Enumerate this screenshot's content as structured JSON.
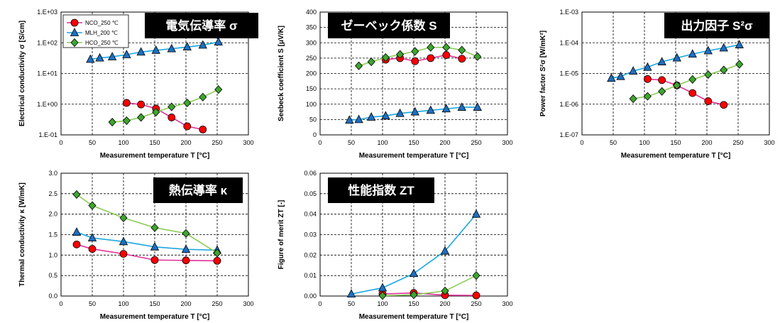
{
  "chart_data": [
    {
      "type": "line",
      "title": "電気伝導率 σ",
      "xlabel": "Measurement temperature T [°C]",
      "ylabel": "Electrical conductivity σ [S/cm]",
      "xlim": [
        0,
        300
      ],
      "xticks": [
        "0",
        "50",
        "100",
        "150",
        "200",
        "250",
        "300"
      ],
      "ylim": [
        0.1,
        1000
      ],
      "yscale": "log",
      "yticks": [
        "1.E-01",
        "1.E+00",
        "1.E+01",
        "1.E+02",
        "1.E+03"
      ],
      "grid": true,
      "legend": "top-left",
      "series": [
        {
          "name": "NCO_250 ℃",
          "x": [
            105,
            128,
            152,
            177,
            202,
            227
          ],
          "y": [
            1.1,
            0.98,
            0.72,
            0.37,
            0.19,
            0.15
          ]
        },
        {
          "name": "MLH_200 ℃",
          "x": [
            47,
            62,
            82,
            105,
            128,
            152,
            177,
            202,
            227,
            252
          ],
          "y": [
            29,
            32,
            35,
            41,
            50,
            57,
            64,
            73,
            84,
            106
          ]
        },
        {
          "name": "HCO_250 ℃",
          "x": [
            82,
            105,
            128,
            152,
            177,
            202,
            227,
            252
          ],
          "y": [
            0.26,
            0.29,
            0.37,
            0.55,
            0.82,
            1.1,
            1.7,
            3.0
          ]
        }
      ]
    },
    {
      "type": "line",
      "title": "ゼーベック係数 S",
      "xlabel": "Measurement temperature T [°C]",
      "ylabel": "Seebeck coefficient S [μV/K]",
      "xlim": [
        0,
        300
      ],
      "xticks": [
        "0",
        "50",
        "100",
        "150",
        "200",
        "250",
        "300"
      ],
      "ylim": [
        0,
        400
      ],
      "yticks": [
        "0",
        "50",
        "100",
        "150",
        "200",
        "250",
        "300",
        "350",
        "400"
      ],
      "grid": true,
      "series": [
        {
          "name": "NCO_250 ℃",
          "x": [
            105,
            128,
            152,
            177,
            202,
            227
          ],
          "y": [
            245,
            250,
            240,
            250,
            260,
            248
          ]
        },
        {
          "name": "MLH_200 ℃",
          "x": [
            47,
            62,
            82,
            105,
            128,
            152,
            177,
            202,
            227,
            252
          ],
          "y": [
            48,
            50,
            58,
            62,
            70,
            75,
            80,
            85,
            90,
            90
          ]
        },
        {
          "name": "HCO_250 ℃",
          "x": [
            62,
            82,
            105,
            128,
            152,
            177,
            202,
            227,
            252
          ],
          "y": [
            225,
            238,
            252,
            262,
            272,
            285,
            285,
            276,
            255
          ]
        }
      ]
    },
    {
      "type": "line",
      "title": "出力因子 S²σ",
      "xlabel": "Measurement temperature T [°C]",
      "ylabel": "Power factor S²σ [W/mK²]",
      "xlim": [
        0,
        300
      ],
      "xticks": [
        "0",
        "50",
        "100",
        "150",
        "200",
        "250",
        "300"
      ],
      "ylim": [
        1e-07,
        0.001
      ],
      "yscale": "log",
      "yticks": [
        "1.E-07",
        "1.E-06",
        "1.E-05",
        "1.E-04",
        "1.E-03"
      ],
      "grid": true,
      "series": [
        {
          "name": "NCO_250 ℃",
          "x": [
            105,
            128,
            152,
            177,
            202,
            227
          ],
          "y": [
            6.6e-06,
            6.1e-06,
            4.1e-06,
            2.3e-06,
            1.25e-06,
            9.5e-07
          ]
        },
        {
          "name": "MLH_200 ℃",
          "x": [
            47,
            62,
            82,
            105,
            128,
            152,
            177,
            202,
            227,
            252
          ],
          "y": [
            7e-06,
            8e-06,
            1.2e-05,
            1.6e-05,
            2.4e-05,
            3.2e-05,
            4.3e-05,
            5.5e-05,
            6.8e-05,
            8.6e-05
          ]
        },
        {
          "name": "HCO_250 ℃",
          "x": [
            82,
            105,
            128,
            152,
            177,
            202,
            227,
            252
          ],
          "y": [
            1.5e-06,
            1.8e-06,
            2.6e-06,
            4.1e-06,
            6.4e-06,
            9.2e-06,
            1.3e-05,
            2e-05
          ]
        }
      ]
    },
    {
      "type": "line",
      "title": "熱伝導率 κ",
      "xlabel": "Measurement temperature T [°C]",
      "ylabel": "Thermal conductivity κ [W/mK]",
      "xlim": [
        0,
        300
      ],
      "xticks": [
        "0",
        "50",
        "100",
        "150",
        "200",
        "250",
        "300"
      ],
      "ylim": [
        0,
        3.0
      ],
      "yticks": [
        "0.0",
        "0.5",
        "1.0",
        "1.5",
        "2.0",
        "2.5",
        "3.0"
      ],
      "grid": true,
      "series": [
        {
          "name": "NCO_250 ℃",
          "x": [
            25,
            50,
            100,
            150,
            200,
            250
          ],
          "y": [
            1.26,
            1.15,
            1.03,
            0.88,
            0.87,
            0.86
          ]
        },
        {
          "name": "MLH_200 ℃",
          "x": [
            25,
            50,
            100,
            150,
            200,
            250
          ],
          "y": [
            1.56,
            1.42,
            1.33,
            1.2,
            1.14,
            1.12
          ]
        },
        {
          "name": "HCO_250 ℃",
          "x": [
            25,
            50,
            100,
            150,
            200,
            250
          ],
          "y": [
            2.48,
            2.21,
            1.91,
            1.67,
            1.53,
            1.05
          ]
        }
      ]
    },
    {
      "type": "line",
      "title": "性能指数 ZT",
      "xlabel": "Measurement temperature T [°C]",
      "ylabel": "Figure of merit ZT [-]",
      "xlim": [
        0,
        300
      ],
      "xticks": [
        "0",
        "50",
        "100",
        "150",
        "200",
        "250",
        "300"
      ],
      "ylim": [
        0,
        0.06
      ],
      "yticks": [
        "0.00",
        "0.01",
        "0.02",
        "0.03",
        "0.04",
        "0.05",
        "0.06"
      ],
      "grid": true,
      "series": [
        {
          "name": "NCO_250 ℃",
          "x": [
            100,
            150,
            200,
            250
          ],
          "y": [
            0.001,
            0.0015,
            0.0004,
            0.0003
          ]
        },
        {
          "name": "MLH_200 ℃",
          "x": [
            50,
            100,
            150,
            200,
            250
          ],
          "y": [
            0.001,
            0.004,
            0.011,
            0.022,
            0.04
          ]
        },
        {
          "name": "HCO_250 ℃",
          "x": [
            100,
            150,
            200,
            250
          ],
          "y": [
            0.0002,
            0.0006,
            0.0025,
            0.01
          ]
        }
      ]
    }
  ],
  "legend": [
    "NCO_250 ℃",
    "MLH_200 ℃",
    "HCO_250 ℃"
  ],
  "colors": {
    "NCO_250 ℃": {
      "line": "#e0309a",
      "marker": "#ff0000"
    },
    "MLH_200 ℃": {
      "line": "#1aa7dd",
      "marker": "#1f6fbf"
    },
    "HCO_250 ℃": {
      "line": "#8ccc5a",
      "marker": "#3ea530"
    }
  }
}
